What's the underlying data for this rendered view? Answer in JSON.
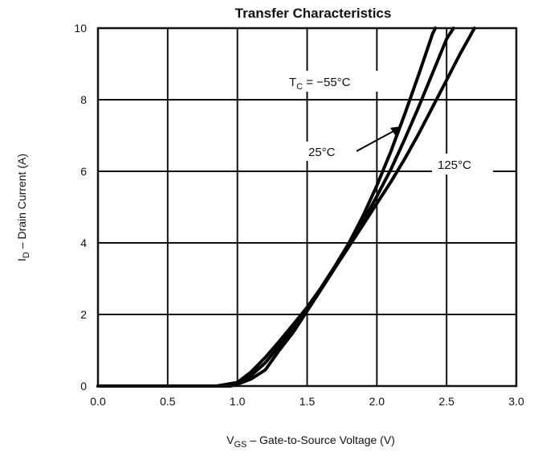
{
  "chart_data": {
    "type": "line",
    "title": "Transfer Characteristics",
    "xlabel": {
      "main": "V",
      "sub": "GS",
      "rest": " – Gate-to-Source Voltage (V)"
    },
    "ylabel": {
      "main": "I",
      "sub": "D",
      "rest": " – Drain Current (A)"
    },
    "xlim": [
      0.0,
      3.0
    ],
    "ylim": [
      0,
      10
    ],
    "x_ticks": [
      "0.0",
      "0.5",
      "1.0",
      "1.5",
      "2.0",
      "2.5",
      "3.0"
    ],
    "y_ticks": [
      "0",
      "2",
      "4",
      "6",
      "8",
      "10"
    ],
    "grid": true,
    "series": [
      {
        "name": "TC = -55°C",
        "x": [
          0.0,
          0.85,
          1.0,
          1.1,
          1.2,
          1.3,
          1.4,
          1.5,
          1.6,
          1.7,
          1.8,
          1.9,
          2.0,
          2.1,
          2.2,
          2.3,
          2.4,
          2.42
        ],
        "y": [
          0,
          0,
          0.1,
          0.4,
          0.8,
          1.25,
          1.72,
          2.2,
          2.75,
          3.35,
          4.0,
          4.75,
          5.6,
          6.55,
          7.6,
          8.7,
          9.85,
          10
        ]
      },
      {
        "name": "25°C",
        "x": [
          0.0,
          0.9,
          1.0,
          1.1,
          1.2,
          1.3,
          1.4,
          1.5,
          1.6,
          1.7,
          1.8,
          1.9,
          2.0,
          2.1,
          2.2,
          2.3,
          2.4,
          2.5,
          2.55
        ],
        "y": [
          0,
          0,
          0.08,
          0.3,
          0.65,
          1.12,
          1.62,
          2.15,
          2.72,
          3.32,
          3.95,
          4.6,
          5.3,
          6.05,
          6.9,
          7.8,
          8.75,
          9.7,
          10
        ]
      },
      {
        "name": "125°C",
        "x": [
          0.0,
          0.95,
          1.0,
          1.1,
          1.2,
          1.3,
          1.4,
          1.5,
          1.6,
          1.7,
          1.8,
          1.9,
          2.0,
          2.1,
          2.2,
          2.3,
          2.4,
          2.5,
          2.6,
          2.7
        ],
        "y": [
          0,
          0,
          0.05,
          0.2,
          0.45,
          1.0,
          1.5,
          2.1,
          2.7,
          3.3,
          3.9,
          4.5,
          5.1,
          5.7,
          6.35,
          7.05,
          7.8,
          8.55,
          9.3,
          10
        ]
      }
    ],
    "annotations": {
      "tc_main": "T",
      "tc_sub": "C",
      "tc_rest": " = −55°C",
      "c25": "25°C",
      "c125": "125°C"
    }
  }
}
